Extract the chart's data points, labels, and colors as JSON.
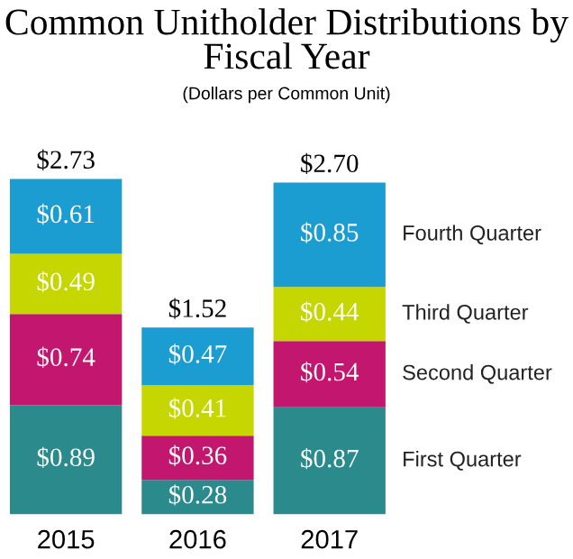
{
  "chart_data": {
    "type": "bar",
    "title": "Common Unitholder Distributions by Fiscal Year",
    "subtitle": "(Dollars per Common Unit)",
    "categories": [
      "2015",
      "2016",
      "2017"
    ],
    "stacked": true,
    "series": [
      {
        "name": "First Quarter",
        "color": "#2b8a8c",
        "values": [
          0.89,
          0.28,
          0.87
        ],
        "value_labels": [
          "$0.89",
          "$0.28",
          "$0.87"
        ]
      },
      {
        "name": "Second Quarter",
        "color": "#c2166f",
        "values": [
          0.74,
          0.36,
          0.54
        ],
        "value_labels": [
          "$0.74",
          "$0.36",
          "$0.54"
        ]
      },
      {
        "name": "Third Quarter",
        "color": "#c6d600",
        "values": [
          0.49,
          0.41,
          0.44
        ],
        "value_labels": [
          "$0.49",
          "$0.41",
          "$0.44"
        ]
      },
      {
        "name": "Fourth Quarter",
        "color": "#1b9dd2",
        "values": [
          0.61,
          0.47,
          0.85
        ],
        "value_labels": [
          "$0.61",
          "$0.47",
          "$0.85"
        ]
      }
    ],
    "totals": [
      "$2.73",
      "$1.52",
      "$2.70"
    ]
  }
}
